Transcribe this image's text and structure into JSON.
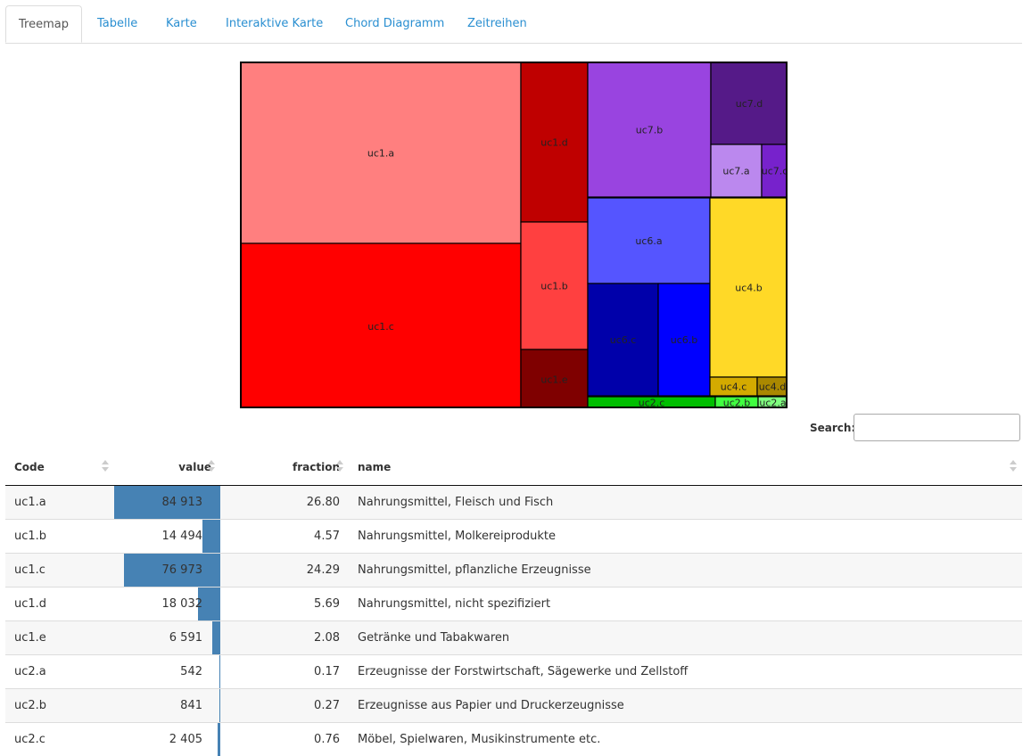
{
  "tabs": [
    {
      "label": "Treemap",
      "active": true
    },
    {
      "label": "Tabelle",
      "active": false
    },
    {
      "label": "Karte",
      "active": false
    },
    {
      "label": "Interaktive Karte",
      "active": false
    },
    {
      "label": "Chord Diagramm",
      "active": false
    },
    {
      "label": "Zeitreihen",
      "active": false
    }
  ],
  "treemap": {
    "type": "treemap",
    "cells": [
      {
        "label": "uc1.a",
        "value": 84913,
        "color": "#ff7f7f"
      },
      {
        "label": "uc1.b",
        "value": 14494,
        "color": "#ff4040"
      },
      {
        "label": "uc1.c",
        "value": 76973,
        "color": "#ff0000"
      },
      {
        "label": "uc1.d",
        "value": 18032,
        "color": "#bf0000"
      },
      {
        "label": "uc1.e",
        "value": 6591,
        "color": "#7f0000"
      },
      {
        "label": "uc2.a",
        "value": 542,
        "color": "#7fff7f"
      },
      {
        "label": "uc2.b",
        "value": 841,
        "color": "#40ff40"
      },
      {
        "label": "uc2.c",
        "value": 2405,
        "color": "#00bf00"
      },
      {
        "label": "uc4.b",
        "color": "#ffd927"
      },
      {
        "label": "uc4.c",
        "color": "#d4aa00"
      },
      {
        "label": "uc4.d",
        "color": "#aa8800"
      },
      {
        "label": "uc6.a",
        "color": "#5555ff"
      },
      {
        "label": "uc6.b",
        "color": "#0000ff"
      },
      {
        "label": "uc6.c",
        "color": "#0000aa"
      },
      {
        "label": "uc7.a",
        "color": "#bb88ee"
      },
      {
        "label": "uc7.b",
        "color": "#9944e0"
      },
      {
        "label": "uc7.c",
        "color": "#7722cc"
      },
      {
        "label": "uc7.d",
        "color": "#551a88"
      }
    ]
  },
  "search": {
    "label": "Search:",
    "value": ""
  },
  "table": {
    "columns": [
      "Code",
      "value",
      "fraction",
      "name"
    ],
    "bar_color": "#4682b4",
    "rows": [
      {
        "code": "uc1.a",
        "value": "84 913",
        "value_num": 84913,
        "fraction": "26.80",
        "name": "Nahrungsmittel, Fleisch und Fisch"
      },
      {
        "code": "uc1.b",
        "value": "14 494",
        "value_num": 14494,
        "fraction": "4.57",
        "name": "Nahrungsmittel, Molkereiprodukte"
      },
      {
        "code": "uc1.c",
        "value": "76 973",
        "value_num": 76973,
        "fraction": "24.29",
        "name": "Nahrungsmittel, pflanzliche Erzeugnisse"
      },
      {
        "code": "uc1.d",
        "value": "18 032",
        "value_num": 18032,
        "fraction": "5.69",
        "name": "Nahrungsmittel, nicht spezifiziert"
      },
      {
        "code": "uc1.e",
        "value": "6 591",
        "value_num": 6591,
        "fraction": "2.08",
        "name": "Getränke und Tabakwaren"
      },
      {
        "code": "uc2.a",
        "value": "542",
        "value_num": 542,
        "fraction": "0.17",
        "name": "Erzeugnisse der Forstwirtschaft, Sägewerke und Zellstoff"
      },
      {
        "code": "uc2.b",
        "value": "841",
        "value_num": 841,
        "fraction": "0.27",
        "name": "Erzeugnisse aus Papier und Druckerzeugnisse"
      },
      {
        "code": "uc2.c",
        "value": "2 405",
        "value_num": 2405,
        "fraction": "0.76",
        "name": "Möbel, Spielwaren, Musikinstrumente etc."
      }
    ]
  }
}
